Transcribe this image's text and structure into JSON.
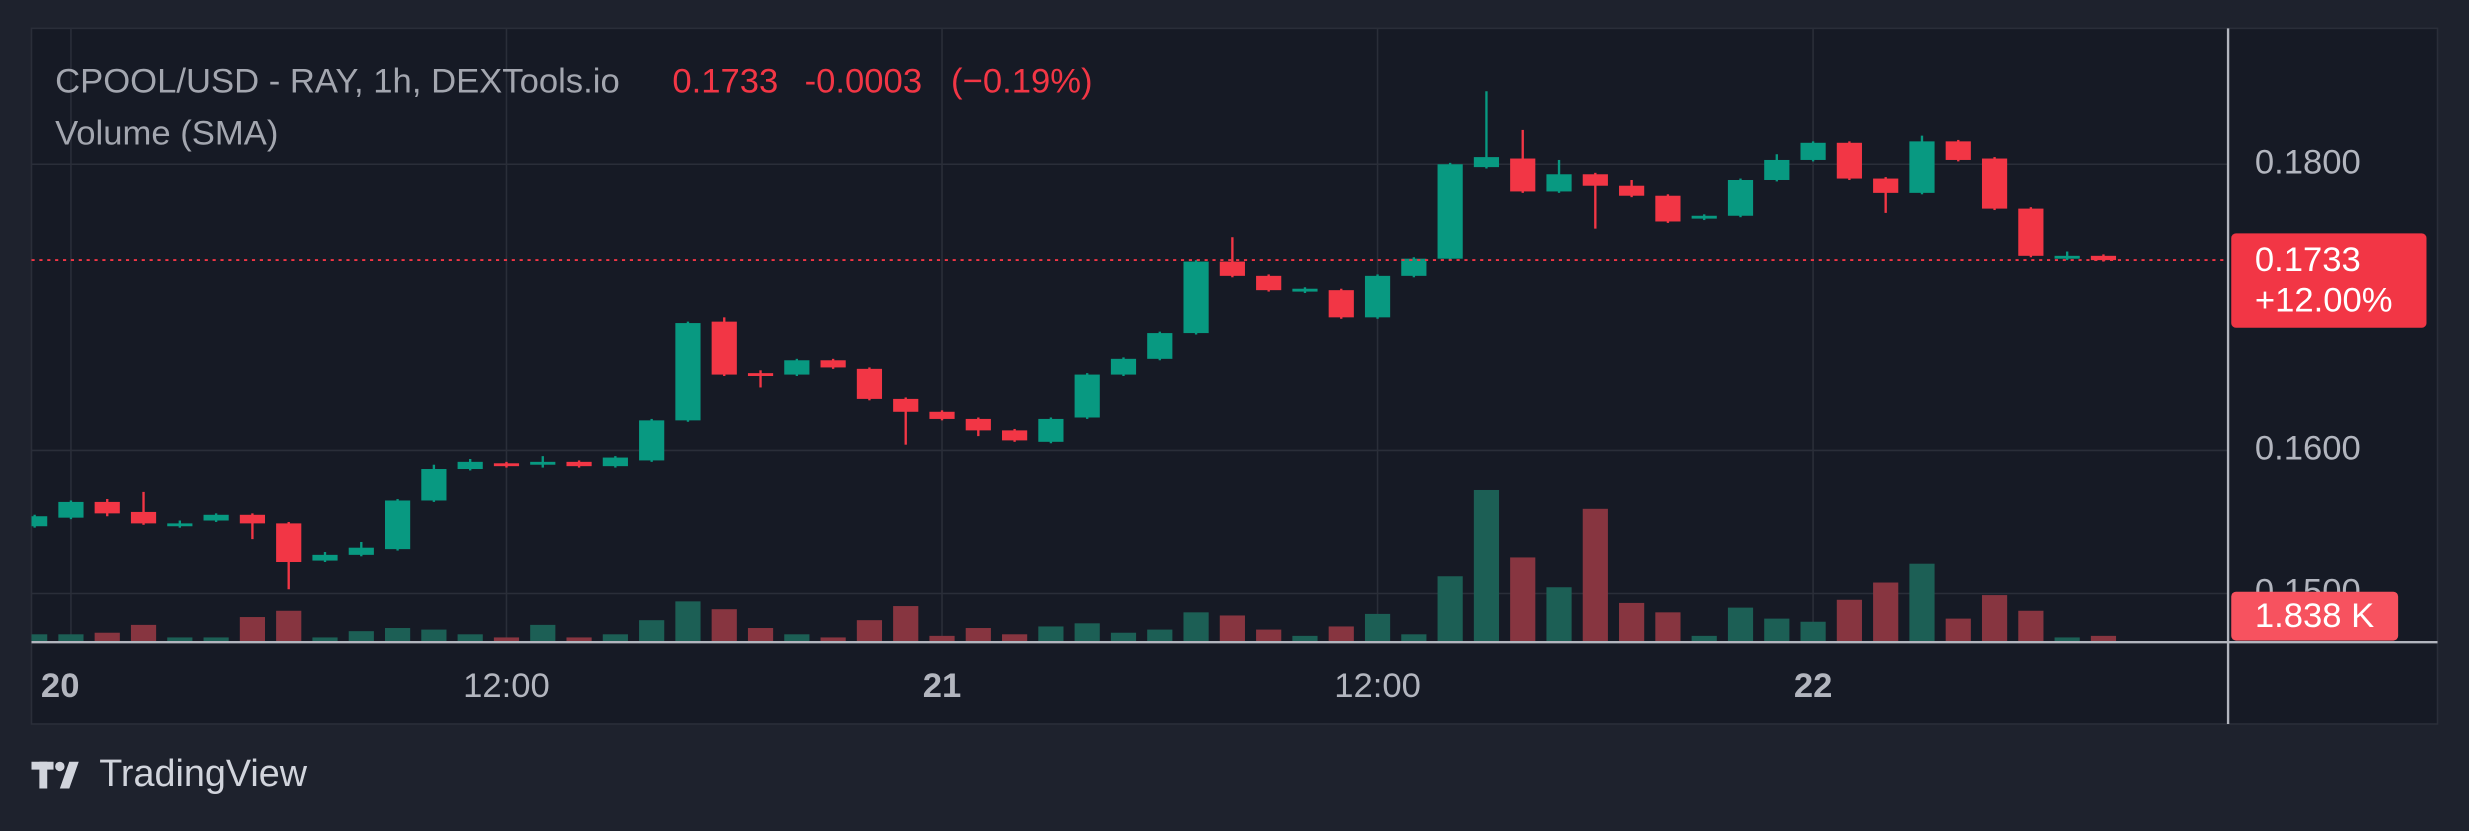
{
  "chart_data": {
    "type": "candlestick",
    "title": "CPOOL/USD - RAY, 1h, DEXTools.io",
    "change": -0.0003,
    "change_pct": {
      "value": -0.19,
      "label": "(−0.19%)"
    },
    "price_change_pct": {
      "value": 12,
      "label": "+12.00%"
    },
    "volume_name": "Volume (SMA)",
    "volume_last_label": "1.838 K",
    "brand": "TradingView",
    "up_color": "#089981",
    "down_color": "#f23645",
    "up_volume_color": "#1c5f55",
    "down_volume_color": "#873540",
    "grid": true,
    "categories": [
      null,
      "20",
      null,
      null,
      null,
      null,
      null,
      null,
      null,
      null,
      null,
      null,
      null,
      "12:00",
      null,
      null,
      null,
      null,
      null,
      null,
      null,
      null,
      null,
      null,
      null,
      "21",
      null,
      null,
      null,
      null,
      null,
      null,
      null,
      null,
      null,
      null,
      null,
      "12:00",
      null,
      null,
      null,
      null,
      null,
      null,
      null,
      null,
      null,
      null,
      null,
      "22",
      null,
      null,
      null,
      null,
      null,
      null,
      null,
      null
    ],
    "open": [
      0.1547,
      0.1553,
      0.1564,
      0.1557,
      0.1547,
      0.1551,
      0.1555,
      0.1549,
      0.1523,
      0.1527,
      0.1531,
      0.1565,
      0.1587,
      0.1591,
      0.159,
      0.1592,
      0.1589,
      0.1593,
      0.1621,
      0.169,
      0.1654,
      0.1653,
      0.1663,
      0.1657,
      0.1636,
      0.1627,
      0.1622,
      0.1614,
      0.1606,
      0.1623,
      0.1653,
      0.1664,
      0.1682,
      0.1732,
      0.1722,
      0.1711,
      0.1712,
      0.1693,
      0.1722,
      0.1734,
      0.1798,
      0.1804,
      0.1781,
      0.1793,
      0.1785,
      0.1778,
      0.1762,
      0.1764,
      0.1789,
      0.1803,
      0.1815,
      0.179,
      0.178,
      0.1816,
      0.1804,
      0.1769,
      0.1734,
      0.1736
    ],
    "high": [
      0.1555,
      0.1565,
      0.1566,
      0.1571,
      0.1551,
      0.1556,
      0.1556,
      0.155,
      0.1529,
      0.1536,
      0.1566,
      0.159,
      0.1594,
      0.1592,
      0.1596,
      0.1593,
      0.1596,
      0.1622,
      0.169,
      0.1693,
      0.1656,
      0.1664,
      0.1664,
      0.1658,
      0.1637,
      0.1628,
      0.1623,
      0.1615,
      0.1623,
      0.1654,
      0.1665,
      0.1683,
      0.1733,
      0.1749,
      0.1723,
      0.1714,
      0.1713,
      0.1723,
      0.1735,
      0.1801,
      0.1851,
      0.1824,
      0.1803,
      0.1794,
      0.1789,
      0.1779,
      0.1765,
      0.179,
      0.1807,
      0.1816,
      0.1816,
      0.1791,
      0.182,
      0.1817,
      0.1805,
      0.177,
      0.1739,
      0.1737
    ],
    "low": [
      0.1546,
      0.1552,
      0.1554,
      0.1548,
      0.1546,
      0.155,
      0.1538,
      0.1503,
      0.1522,
      0.1526,
      0.153,
      0.1564,
      0.1586,
      0.1588,
      0.1588,
      0.1588,
      0.1588,
      0.1592,
      0.162,
      0.1652,
      0.1644,
      0.1652,
      0.1657,
      0.1635,
      0.1604,
      0.1621,
      0.161,
      0.1606,
      0.1605,
      0.1622,
      0.1652,
      0.1663,
      0.1681,
      0.1721,
      0.1711,
      0.171,
      0.1692,
      0.1692,
      0.1721,
      0.1733,
      0.1797,
      0.178,
      0.178,
      0.1755,
      0.1777,
      0.1759,
      0.1761,
      0.1763,
      0.1788,
      0.1802,
      0.1789,
      0.1766,
      0.1779,
      0.1802,
      0.1768,
      0.1735,
      0.1733,
      0.1732
    ],
    "close": [
      0.1554,
      0.1564,
      0.1556,
      0.1549,
      0.1549,
      0.1555,
      0.1549,
      0.1522,
      0.1527,
      0.1532,
      0.1565,
      0.1587,
      0.1592,
      0.1589,
      0.1592,
      0.1589,
      0.1595,
      0.1621,
      0.1689,
      0.1653,
      0.1652,
      0.1663,
      0.1658,
      0.1636,
      0.1627,
      0.1622,
      0.1614,
      0.1607,
      0.1622,
      0.1653,
      0.1664,
      0.1682,
      0.1732,
      0.1722,
      0.1712,
      0.1713,
      0.1693,
      0.1722,
      0.1734,
      0.18,
      0.1805,
      0.1781,
      0.1793,
      0.1785,
      0.1778,
      0.176,
      0.1764,
      0.1789,
      0.1803,
      0.1815,
      0.179,
      0.178,
      0.1816,
      0.1803,
      0.1769,
      0.1736,
      0.1736,
      0.1733
    ],
    "volume": [
      2300,
      2300,
      2760,
      5060,
      1380,
      1380,
      7360,
      9200,
      1380,
      3220,
      4140,
      3680,
      2300,
      1380,
      5060,
      1380,
      2300,
      6440,
      11960,
      9660,
      4140,
      2300,
      1380,
      6440,
      10580,
      1840,
      4140,
      2300,
      4600,
      5520,
      2760,
      3680,
      8740,
      7820,
      3680,
      1840,
      4600,
      8280,
      2300,
      19320,
      44620,
      24840,
      16100,
      39100,
      11500,
      8740,
      1840,
      10120,
      6900,
      5980,
      12420,
      17480,
      23000,
      6900,
      13800,
      9200,
      1380,
      1838
    ],
    "ylim": [
      0.1466,
      0.1895
    ],
    "yticks": [
      {
        "value": 0.15,
        "label": "0.1500"
      },
      {
        "value": 0.16,
        "label": "0.1600"
      },
      {
        "value": 0.18,
        "label": "0.1800"
      }
    ],
    "volume_ylim": [
      0,
      180000
    ]
  }
}
